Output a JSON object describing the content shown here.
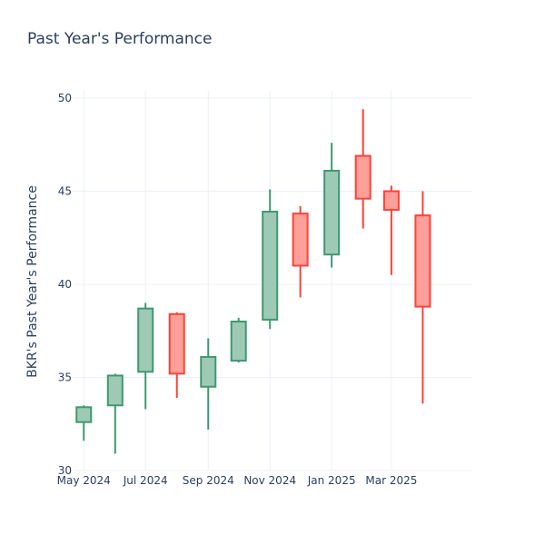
{
  "chart_data": {
    "type": "candlestick",
    "title": "Past Year's Performance",
    "xlabel": "",
    "ylabel": "BKR's Past Year's Performance",
    "ylim": [
      30,
      50
    ],
    "y_ticks": [
      30,
      35,
      40,
      45,
      50
    ],
    "x_range": [
      "2024-04-20",
      "2025-05-20"
    ],
    "x_ticks": [
      {
        "date": "2024-05-01",
        "label": "May 2024"
      },
      {
        "date": "2024-07-01",
        "label": "Jul 2024"
      },
      {
        "date": "2024-09-01",
        "label": "Sep 2024"
      },
      {
        "date": "2024-11-01",
        "label": "Nov 2024"
      },
      {
        "date": "2025-01-01",
        "label": "Jan 2025"
      },
      {
        "date": "2025-03-01",
        "label": "Mar 2025"
      }
    ],
    "grid": true,
    "increasing_color": "#3d9970",
    "increasing_fill": "#9ecab5",
    "decreasing_color": "#ff4136",
    "decreasing_fill": "#ff9f9a",
    "candles": [
      {
        "date": "2024-05-01",
        "open": 32.6,
        "high": 33.5,
        "low": 31.6,
        "close": 33.4
      },
      {
        "date": "2024-06-01",
        "open": 33.5,
        "high": 35.2,
        "low": 30.9,
        "close": 35.1
      },
      {
        "date": "2024-07-01",
        "open": 35.3,
        "high": 39.0,
        "low": 33.3,
        "close": 38.7
      },
      {
        "date": "2024-08-01",
        "open": 38.4,
        "high": 38.5,
        "low": 33.9,
        "close": 35.2
      },
      {
        "date": "2024-09-01",
        "open": 34.5,
        "high": 37.1,
        "low": 32.2,
        "close": 36.1
      },
      {
        "date": "2024-10-01",
        "open": 35.9,
        "high": 38.2,
        "low": 35.8,
        "close": 38.0
      },
      {
        "date": "2024-11-01",
        "open": 38.1,
        "high": 45.1,
        "low": 37.6,
        "close": 43.9
      },
      {
        "date": "2024-12-01",
        "open": 43.8,
        "high": 44.2,
        "low": 39.3,
        "close": 41.0
      },
      {
        "date": "2025-01-01",
        "open": 41.6,
        "high": 47.6,
        "low": 40.9,
        "close": 46.1
      },
      {
        "date": "2025-02-01",
        "open": 46.9,
        "high": 49.4,
        "low": 43.0,
        "close": 44.6
      },
      {
        "date": "2025-03-01",
        "open": 45.0,
        "high": 45.3,
        "low": 40.5,
        "close": 44.0
      },
      {
        "date": "2025-04-01",
        "open": 43.7,
        "high": 45.0,
        "low": 33.6,
        "close": 38.8
      }
    ]
  }
}
